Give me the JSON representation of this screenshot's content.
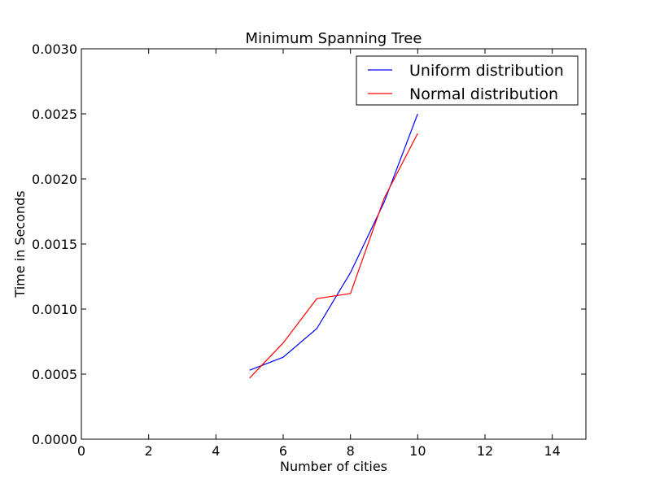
{
  "chart_data": {
    "type": "line",
    "title": "Minimum Spanning Tree",
    "xlabel": "Number of cities",
    "ylabel": "Time in Seconds",
    "xlim": [
      0,
      15
    ],
    "ylim": [
      0,
      0.003
    ],
    "x_ticks": [
      "0",
      "2",
      "4",
      "6",
      "8",
      "10",
      "12",
      "14"
    ],
    "y_ticks": [
      "0.0000",
      "0.0005",
      "0.0010",
      "0.0015",
      "0.0020",
      "0.0025",
      "0.0030"
    ],
    "grid": false,
    "legend_position": "top-right",
    "series": [
      {
        "name": "Uniform distribution",
        "color": "#0000ff",
        "x": [
          5,
          6,
          7,
          8,
          9,
          10
        ],
        "y": [
          0.00053,
          0.00063,
          0.00085,
          0.00128,
          0.00182,
          0.0025
        ]
      },
      {
        "name": "Normal distribution",
        "color": "#ff0000",
        "x": [
          5,
          6,
          7,
          8,
          9,
          10
        ],
        "y": [
          0.00047,
          0.00074,
          0.00108,
          0.00112,
          0.00185,
          0.00235
        ]
      }
    ]
  }
}
